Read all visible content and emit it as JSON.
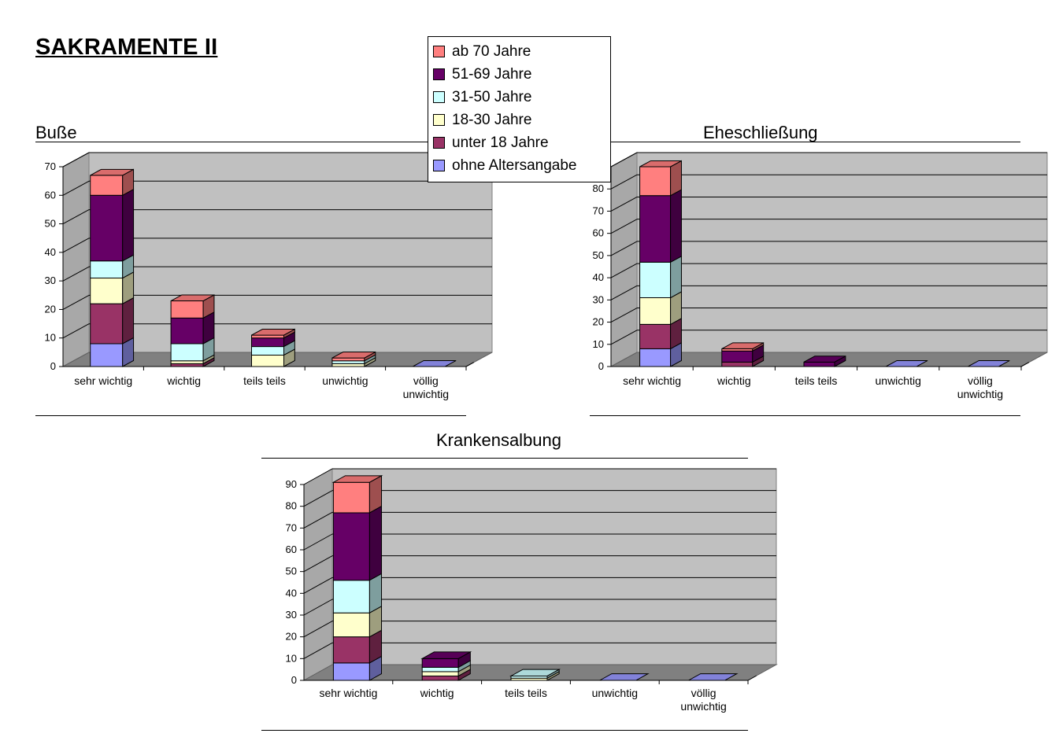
{
  "page": {
    "title": "SAKRAMENTE II"
  },
  "legend": {
    "items": [
      {
        "label": "ab 70 Jahre",
        "color": "#ff7f7f"
      },
      {
        "label": "51-69 Jahre",
        "color": "#660066"
      },
      {
        "label": "31-50 Jahre",
        "color": "#ccffff"
      },
      {
        "label": "18-30 Jahre",
        "color": "#ffffcc"
      },
      {
        "label": "unter 18 Jahre",
        "color": "#993366"
      },
      {
        "label": "ohne Altersangabe",
        "color": "#9999ff"
      }
    ]
  },
  "chart_data": [
    {
      "type": "bar",
      "stacked": true,
      "three_d": true,
      "title": "Buße",
      "xlabel": "",
      "ylabel": "",
      "ylim": [
        0,
        70
      ],
      "yticks": [
        0,
        10,
        20,
        30,
        40,
        50,
        60,
        70
      ],
      "categories": [
        "sehr wichtig",
        "wichtig",
        "teils teils",
        "unwichtig",
        "völlig unwichtig"
      ],
      "series": [
        {
          "name": "ohne Altersangabe",
          "values": [
            8,
            0,
            0,
            0,
            0
          ]
        },
        {
          "name": "unter 18 Jahre",
          "values": [
            14,
            1,
            0,
            0,
            0
          ]
        },
        {
          "name": "18-30 Jahre",
          "values": [
            9,
            1,
            4,
            1,
            0
          ]
        },
        {
          "name": "31-50 Jahre",
          "values": [
            6,
            6,
            3,
            1,
            0
          ]
        },
        {
          "name": "51-69 Jahre",
          "values": [
            23,
            9,
            3,
            0,
            0
          ]
        },
        {
          "name": "ab 70 Jahre",
          "values": [
            7,
            6,
            1,
            1,
            0
          ]
        }
      ],
      "grid": true,
      "legend": "top-right"
    },
    {
      "type": "bar",
      "stacked": true,
      "three_d": true,
      "title": "Eheschließung",
      "xlabel": "",
      "ylabel": "",
      "ylim": [
        0,
        90
      ],
      "yticks": [
        0,
        10,
        20,
        30,
        40,
        50,
        60,
        70,
        80,
        90
      ],
      "categories": [
        "sehr wichtig",
        "wichtig",
        "teils teils",
        "unwichtig",
        "völlig unwichtig"
      ],
      "series": [
        {
          "name": "ohne Altersangabe",
          "values": [
            8,
            0,
            0,
            0,
            0
          ]
        },
        {
          "name": "unter 18 Jahre",
          "values": [
            11,
            2,
            0,
            0,
            0
          ]
        },
        {
          "name": "18-30 Jahre",
          "values": [
            12,
            0,
            0,
            0,
            0
          ]
        },
        {
          "name": "31-50 Jahre",
          "values": [
            16,
            0,
            0,
            0,
            0
          ]
        },
        {
          "name": "51-69 Jahre",
          "values": [
            30,
            5,
            2,
            0,
            0
          ]
        },
        {
          "name": "ab 70 Jahre",
          "values": [
            13,
            1,
            0,
            0,
            0
          ]
        }
      ],
      "grid": true
    },
    {
      "type": "bar",
      "stacked": true,
      "three_d": true,
      "title": "Krankensalbung",
      "xlabel": "",
      "ylabel": "",
      "ylim": [
        0,
        90
      ],
      "yticks": [
        0,
        10,
        20,
        30,
        40,
        50,
        60,
        70,
        80,
        90
      ],
      "categories": [
        "sehr wichtig",
        "wichtig",
        "teils teils",
        "unwichtig",
        "völlig unwichtig"
      ],
      "series": [
        {
          "name": "ohne Altersangabe",
          "values": [
            8,
            0,
            0,
            0,
            0
          ]
        },
        {
          "name": "unter 18 Jahre",
          "values": [
            12,
            2,
            0,
            0,
            0
          ]
        },
        {
          "name": "18-30 Jahre",
          "values": [
            11,
            2,
            1,
            0,
            0
          ]
        },
        {
          "name": "31-50 Jahre",
          "values": [
            15,
            2,
            1,
            0,
            0
          ]
        },
        {
          "name": "51-69 Jahre",
          "values": [
            31,
            4,
            0,
            0,
            0
          ]
        },
        {
          "name": "ab 70 Jahre",
          "values": [
            14,
            0,
            0,
            0,
            0
          ]
        }
      ],
      "grid": true
    }
  ]
}
